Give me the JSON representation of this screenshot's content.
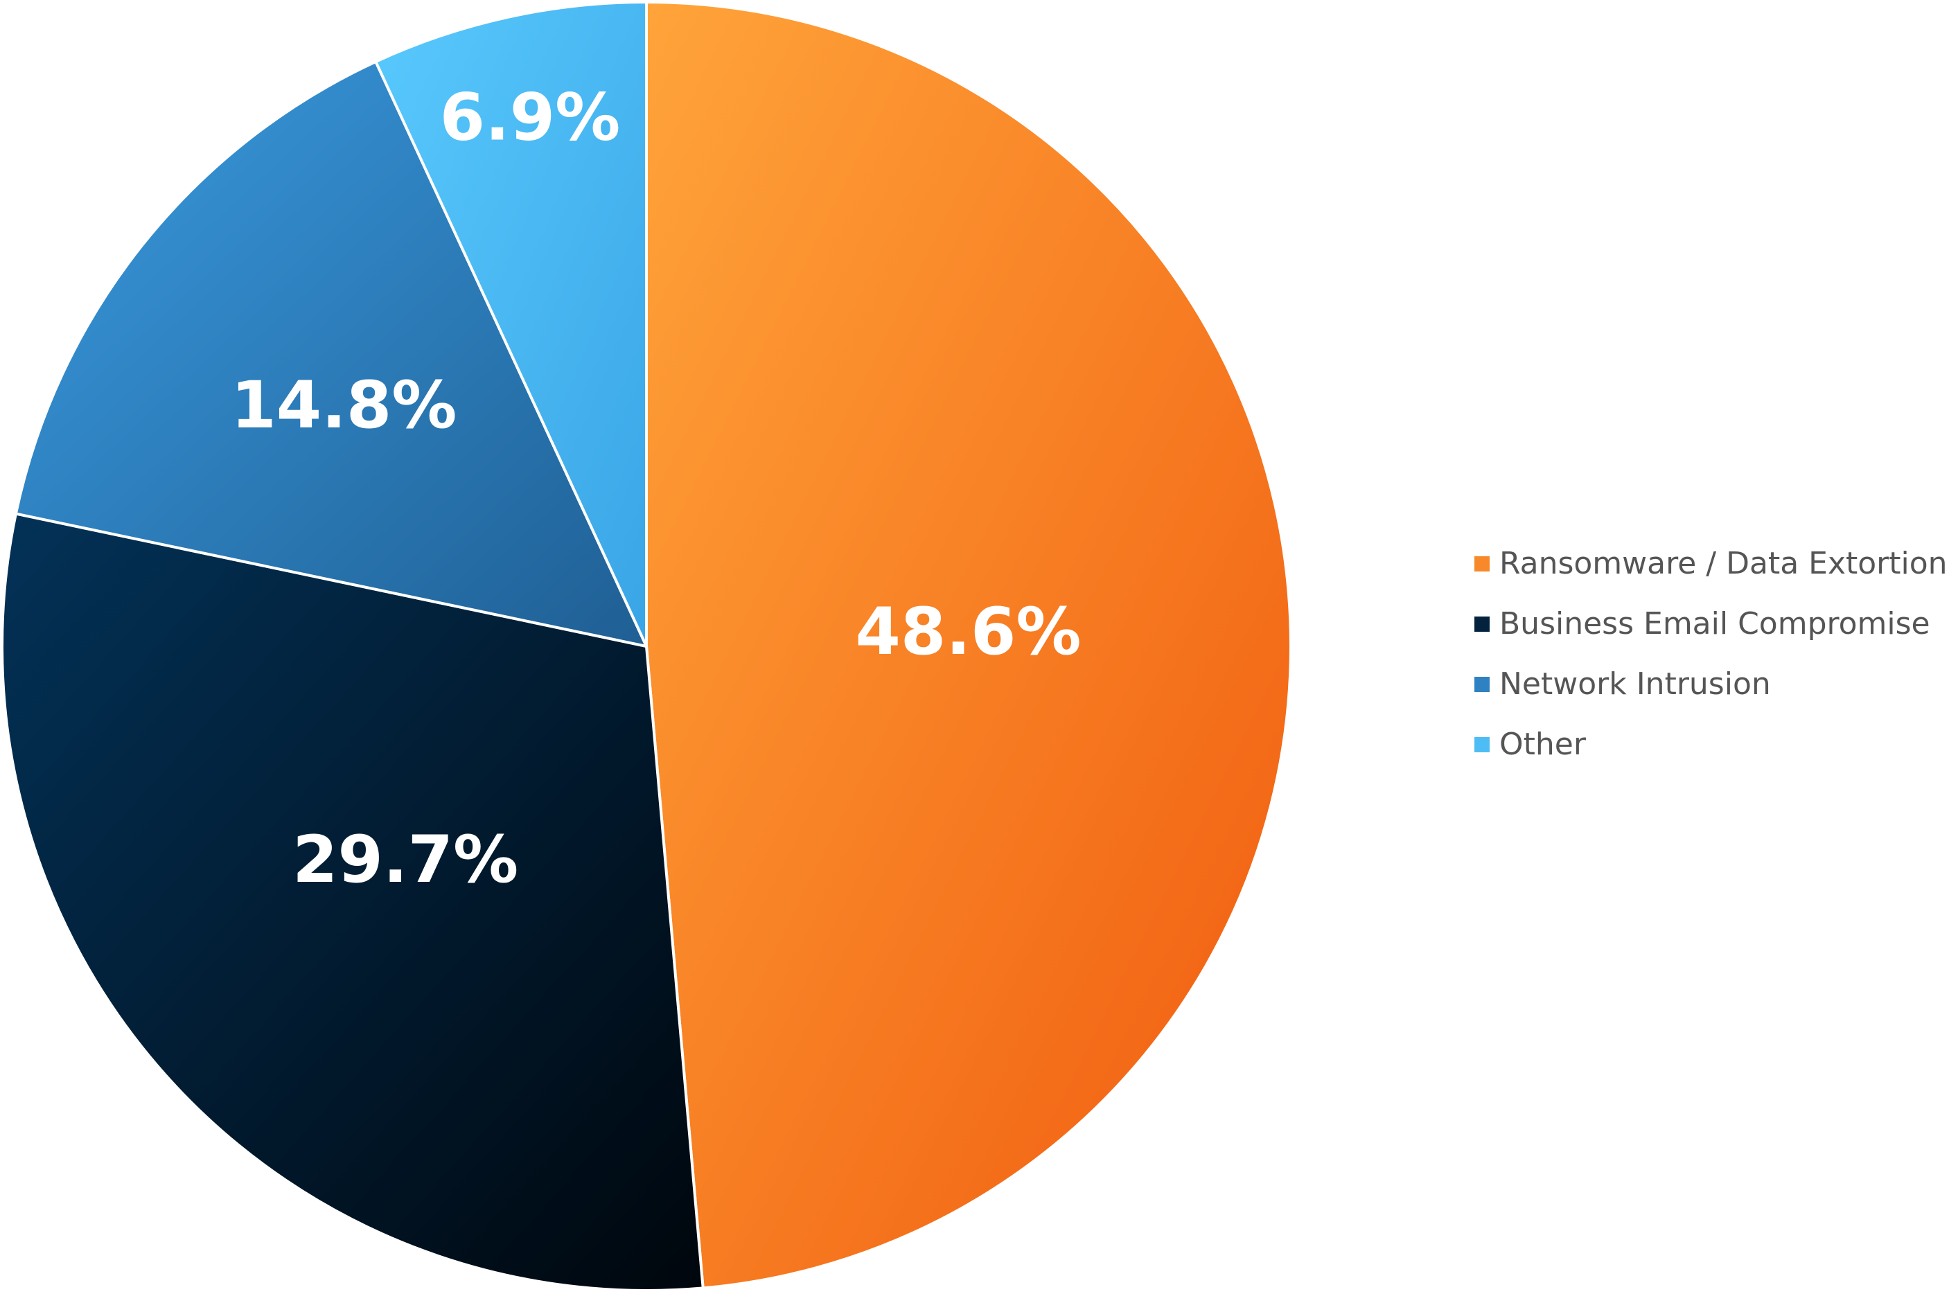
{
  "chart_data": {
    "type": "pie",
    "categories": [
      "Ransomware / Data Extortion",
      "Business Email Compromise",
      "Network Intrusion",
      "Other"
    ],
    "values": [
      48.6,
      29.7,
      14.8,
      6.9
    ],
    "value_labels": [
      "48.6%",
      "29.7%",
      "14.8%",
      "6.9%"
    ],
    "colors": [
      "#F7892A",
      "#02223E",
      "#2F82C2",
      "#4FBDF5"
    ],
    "legend_position": "right"
  }
}
